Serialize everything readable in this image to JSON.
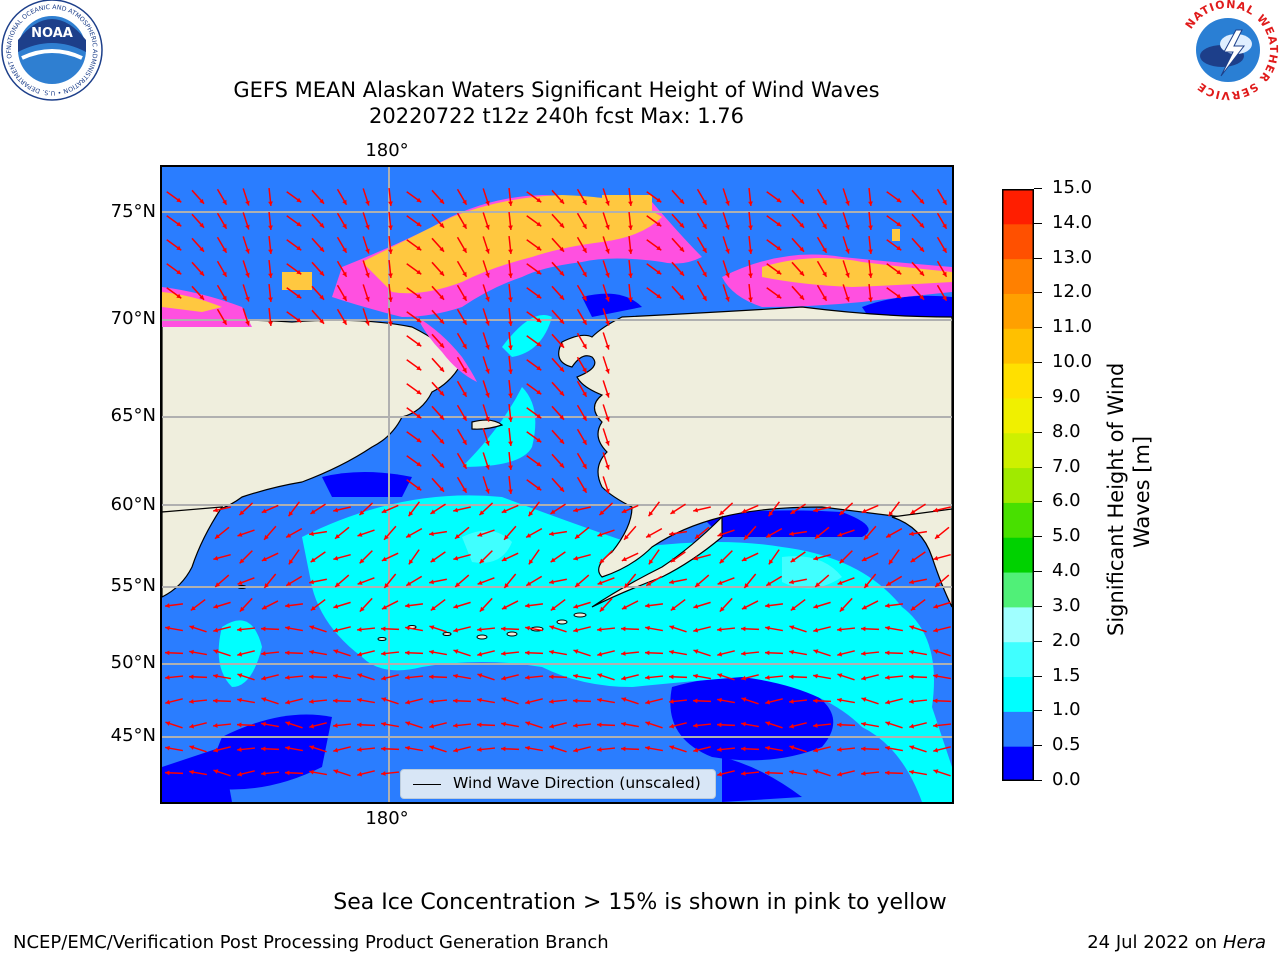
{
  "title": {
    "line1": "GEFS MEAN Alaskan Waters Significant Height of Wind Waves",
    "line2": "20220722 t12z 240h fcst   Max: 1.76"
  },
  "map": {
    "latitude_labels": [
      "75°N",
      "70°N",
      "65°N",
      "60°N",
      "55°N",
      "50°N",
      "45°N"
    ],
    "longitude_label_top": "180°",
    "longitude_label_bottom": "180°",
    "legend_label": "Wind Wave Direction (unscaled)",
    "colors": {
      "land": "#efeedd",
      "wave_0_05": "#0000ff",
      "wave_05_10": "#2a7dff",
      "wave_10_15": "#00ffff",
      "wave_15_20": "#40ffff",
      "arrow": "#ff0000",
      "ice_pink": "#ff50e0",
      "ice_yellow": "#ffc840",
      "grid": "#b0b0b0"
    }
  },
  "colorbar": {
    "title_line1": "Significant Height of Wind",
    "title_line2": "Waves [m]",
    "ticks": [
      "0.0",
      "0.5",
      "1.0",
      "1.5",
      "2.0",
      "3.0",
      "4.0",
      "5.0",
      "6.0",
      "7.0",
      "8.0",
      "9.0",
      "10.0",
      "11.0",
      "12.0",
      "13.0",
      "14.0",
      "15.0"
    ],
    "colors": [
      "#0000ff",
      "#2a7dff",
      "#00ffff",
      "#40ffff",
      "#a0ffff",
      "#50f078",
      "#00d200",
      "#48e000",
      "#a0ea00",
      "#cef000",
      "#f0f000",
      "#ffe000",
      "#ffc000",
      "#ffa000",
      "#ff8000",
      "#ff5000",
      "#ff1e00"
    ]
  },
  "logos": {
    "noaa_text": "NOAA",
    "noaa_ring": "NATIONAL OCEANIC AND ATMOSPHERIC ADMINISTRATION • U.S. DEPARTMENT OF COMMERCE",
    "nws_ring": "NATIONAL WEATHER SERVICE"
  },
  "footer": {
    "note": "Sea Ice Concentration > 15% is shown in pink to yellow",
    "left": "NCEP/EMC/Verification Post Processing Product Generation Branch",
    "right_date": "24 Jul 2022 on ",
    "right_host": "Hera"
  }
}
